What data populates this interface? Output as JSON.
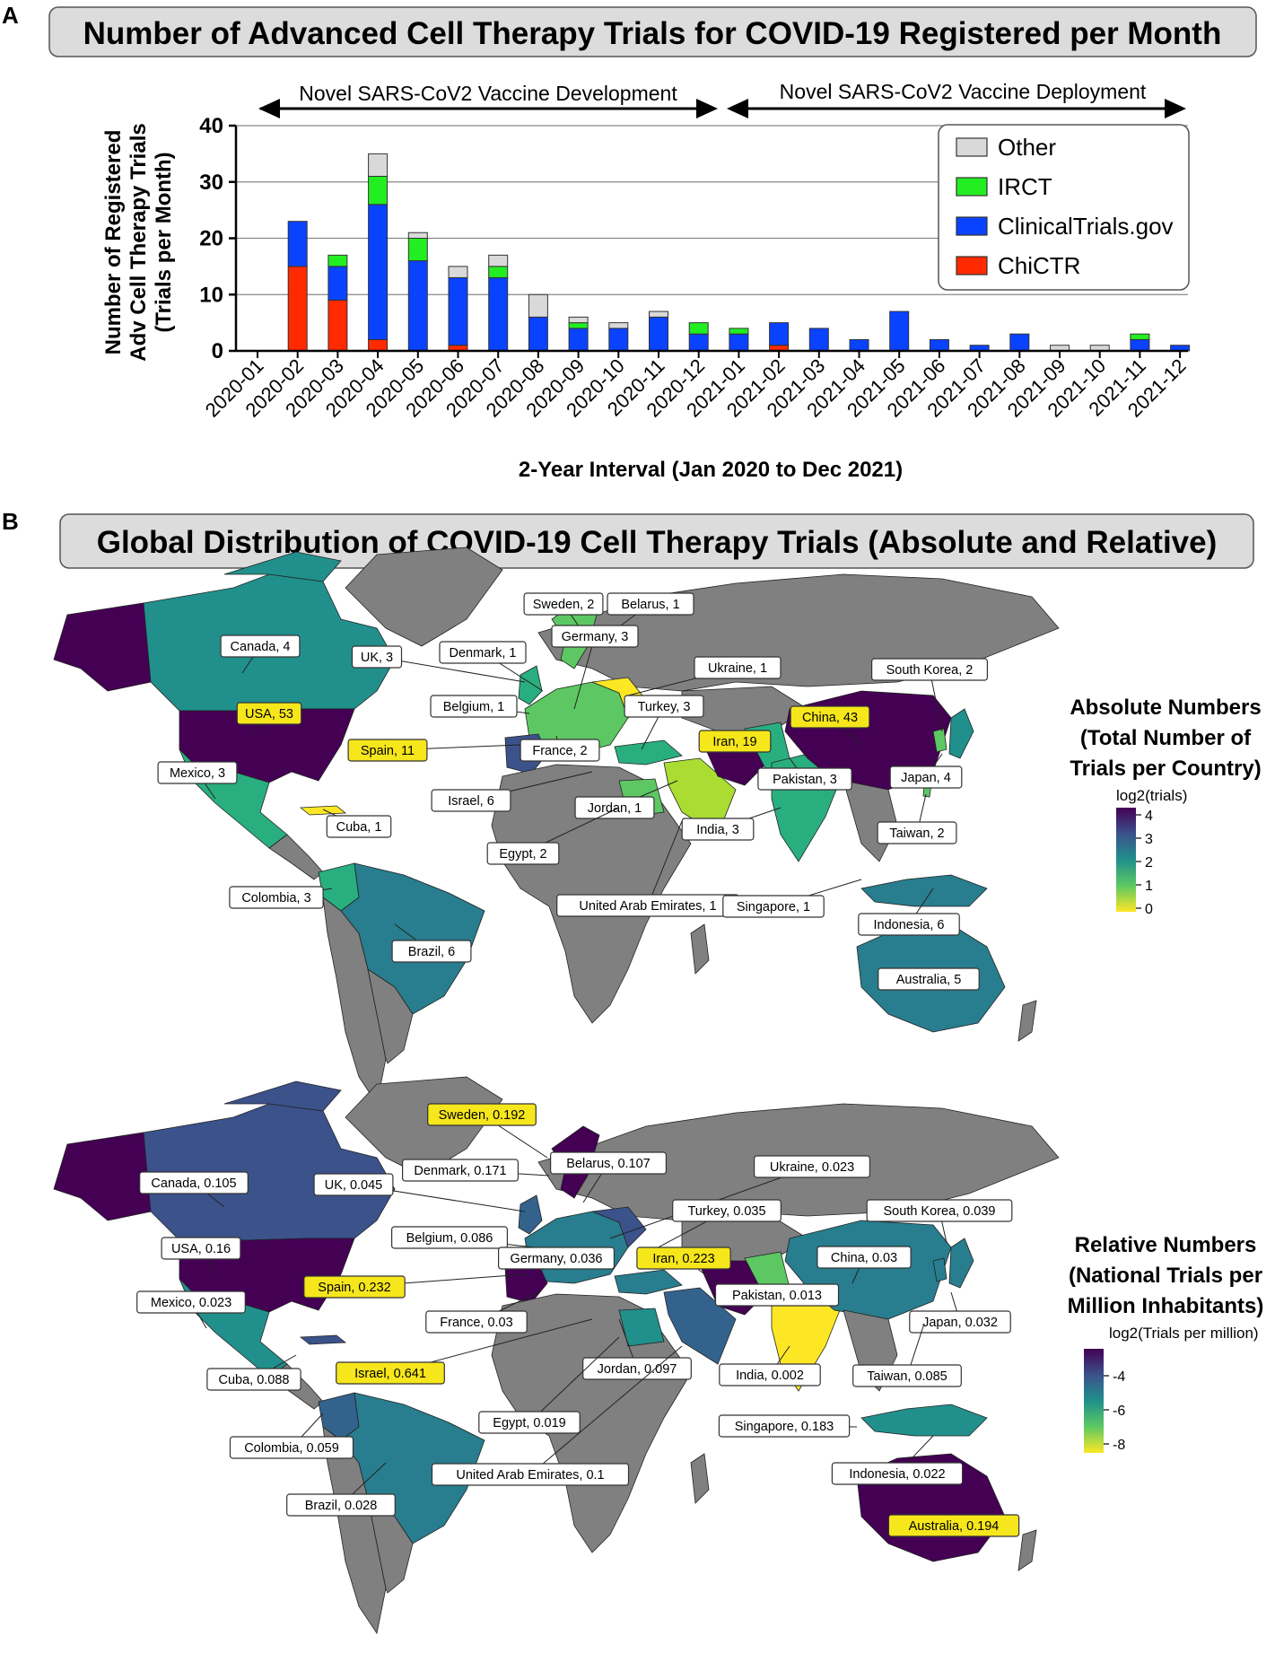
{
  "panel_a_letter": "A",
  "panel_b_letter": "B",
  "panel_a_title": "Number of Advanced Cell Therapy Trials for COVID-19 Registered per Month",
  "panel_b_title": "Global Distribution of COVID-19 Cell Therapy Trials  (Absolute and Relative)",
  "colors": {
    "ChiCTR": "#ff2a00",
    "ClinicalTrials.gov": "#0a43ff",
    "IRCT": "#22ee22",
    "Other": "#d9d9d9",
    "land_gray": "#808080",
    "highlight": "#f6e61c"
  },
  "chart_data": [
    {
      "type": "bar",
      "stacked": true,
      "title": "Number of Advanced Cell Therapy Trials for COVID-19 Registered per Month",
      "xlabel": "2-Year Interval  (Jan 2020 to Dec 2021)",
      "ylabel_lines": [
        "Number of  Registered",
        "Adv Cell Therapy Trials",
        "(Trials per Month)"
      ],
      "ylim": [
        0,
        40
      ],
      "yticks": [
        0,
        10,
        20,
        30,
        40
      ],
      "grid": "horizontal",
      "legend_position": "top-right",
      "legend_order": [
        "Other",
        "IRCT",
        "ClinicalTrials.gov",
        "ChiCTR"
      ],
      "categories": [
        "2020-01",
        "2020-02",
        "2020-03",
        "2020-04",
        "2020-05",
        "2020-06",
        "2020-07",
        "2020-08",
        "2020-09",
        "2020-10",
        "2020-11",
        "2020-12",
        "2021-01",
        "2021-02",
        "2021-03",
        "2021-04",
        "2021-05",
        "2021-06",
        "2021-07",
        "2021-08",
        "2021-09",
        "2021-10",
        "2021-11",
        "2021-12"
      ],
      "series": [
        {
          "name": "ChiCTR",
          "values": [
            0,
            15,
            9,
            2,
            0,
            1,
            0,
            0,
            0,
            0,
            0,
            0,
            0,
            1,
            0,
            0,
            0,
            0,
            0,
            0,
            0,
            0,
            0,
            0
          ]
        },
        {
          "name": "ClinicalTrials.gov",
          "values": [
            0,
            8,
            6,
            24,
            16,
            12,
            13,
            6,
            4,
            4,
            6,
            3,
            3,
            4,
            4,
            2,
            7,
            2,
            1,
            3,
            0,
            0,
            2,
            1
          ]
        },
        {
          "name": "IRCT",
          "values": [
            0,
            0,
            2,
            5,
            4,
            0,
            2,
            0,
            1,
            0,
            0,
            2,
            1,
            0,
            0,
            0,
            0,
            0,
            0,
            0,
            0,
            0,
            1,
            0
          ]
        },
        {
          "name": "Other",
          "values": [
            0,
            0,
            0,
            4,
            1,
            2,
            2,
            4,
            1,
            1,
            1,
            0,
            0,
            0,
            0,
            0,
            0,
            0,
            0,
            0,
            1,
            1,
            0,
            0
          ]
        }
      ],
      "annotations": [
        "Novel SARS-CoV2 Vaccine Development",
        "Novel SARS-CoV2 Vaccine Deployment"
      ]
    },
    {
      "type": "choropleth",
      "scale_title_lines": [
        "Absolute Numbers",
        "(Total Number of",
        "Trials per Country)"
      ],
      "scale_variable": "log2(trials)",
      "scale_ticks": [
        "4",
        "3",
        "2",
        "1",
        "0"
      ],
      "labels": [
        {
          "text": "Sweden, 2",
          "highlight": false
        },
        {
          "text": "Belarus, 1",
          "highlight": false
        },
        {
          "text": "Canada, 4",
          "highlight": false
        },
        {
          "text": "UK, 3",
          "highlight": false
        },
        {
          "text": "Denmark, 1",
          "highlight": false
        },
        {
          "text": "Germany, 3",
          "highlight": false
        },
        {
          "text": "Ukraine, 1",
          "highlight": false
        },
        {
          "text": "South Korea, 2",
          "highlight": false
        },
        {
          "text": "Belgium, 1",
          "highlight": false
        },
        {
          "text": "Turkey, 3",
          "highlight": false
        },
        {
          "text": "USA, 53",
          "highlight": true
        },
        {
          "text": "China, 43",
          "highlight": true
        },
        {
          "text": "Spain, 11",
          "highlight": true
        },
        {
          "text": "Iran, 19",
          "highlight": true
        },
        {
          "text": "France, 2",
          "highlight": false
        },
        {
          "text": "Mexico, 3",
          "highlight": false
        },
        {
          "text": "Japan, 4",
          "highlight": false
        },
        {
          "text": "Pakistan, 3",
          "highlight": false
        },
        {
          "text": "Israel, 6",
          "highlight": false
        },
        {
          "text": "Jordan, 1",
          "highlight": false
        },
        {
          "text": "Cuba, 1",
          "highlight": false
        },
        {
          "text": "India, 3",
          "highlight": false
        },
        {
          "text": "Taiwan, 2",
          "highlight": false
        },
        {
          "text": "Egypt, 2",
          "highlight": false
        },
        {
          "text": "Colombia, 3",
          "highlight": false
        },
        {
          "text": "United Arab Emirates, 1",
          "highlight": false
        },
        {
          "text": "Singapore, 1",
          "highlight": false
        },
        {
          "text": "Indonesia, 6",
          "highlight": false
        },
        {
          "text": "Brazil, 6",
          "highlight": false
        },
        {
          "text": "Australia, 5",
          "highlight": false
        }
      ]
    },
    {
      "type": "choropleth",
      "scale_title_lines": [
        "Relative Numbers",
        "(National Trials per",
        "Million Inhabitants)"
      ],
      "scale_variable": "log2(Trials per million)",
      "scale_ticks": [
        "-4",
        "-6",
        "-8"
      ],
      "labels": [
        {
          "text": "Sweden, 0.192",
          "highlight": true
        },
        {
          "text": "Denmark, 0.171",
          "highlight": false
        },
        {
          "text": "Belarus, 0.107",
          "highlight": false
        },
        {
          "text": "Ukraine, 0.023",
          "highlight": false
        },
        {
          "text": "Canada, 0.105",
          "highlight": false
        },
        {
          "text": "UK, 0.045",
          "highlight": false
        },
        {
          "text": "Turkey, 0.035",
          "highlight": false
        },
        {
          "text": "South Korea, 0.039",
          "highlight": false
        },
        {
          "text": "Belgium, 0.086",
          "highlight": false
        },
        {
          "text": "USA, 0.16",
          "highlight": false
        },
        {
          "text": "Germany, 0.036",
          "highlight": false
        },
        {
          "text": "Iran, 0.223",
          "highlight": true
        },
        {
          "text": "China, 0.03",
          "highlight": false
        },
        {
          "text": "Spain, 0.232",
          "highlight": true
        },
        {
          "text": "Mexico, 0.023",
          "highlight": false
        },
        {
          "text": "France, 0.03",
          "highlight": false
        },
        {
          "text": "Pakistan, 0.013",
          "highlight": false
        },
        {
          "text": "Japan, 0.032",
          "highlight": false
        },
        {
          "text": "Israel, 0.641",
          "highlight": true
        },
        {
          "text": "Cuba, 0.088",
          "highlight": false
        },
        {
          "text": "Jordan, 0.097",
          "highlight": false
        },
        {
          "text": "India, 0.002",
          "highlight": false
        },
        {
          "text": "Taiwan, 0.085",
          "highlight": false
        },
        {
          "text": "Egypt, 0.019",
          "highlight": false
        },
        {
          "text": "Singapore, 0.183",
          "highlight": false
        },
        {
          "text": "Colombia, 0.059",
          "highlight": false
        },
        {
          "text": "United Arab Emirates, 0.1",
          "highlight": false
        },
        {
          "text": "Indonesia, 0.022",
          "highlight": false
        },
        {
          "text": "Brazil, 0.028",
          "highlight": false
        },
        {
          "text": "Australia, 0.194",
          "highlight": true
        }
      ]
    }
  ]
}
